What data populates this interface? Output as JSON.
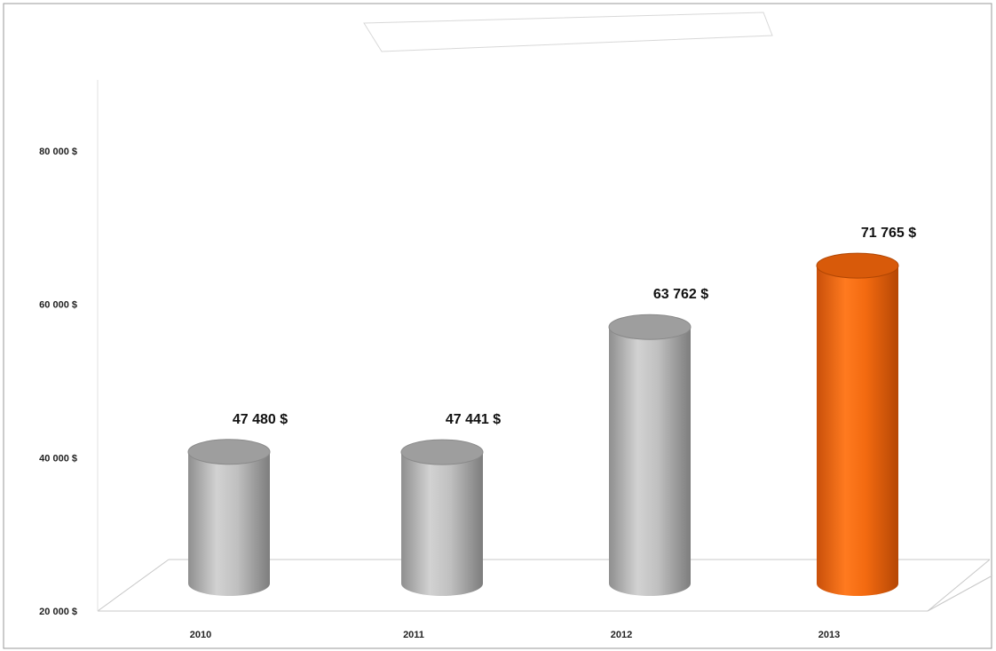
{
  "chart_data": {
    "type": "bar",
    "title": "",
    "xlabel": "",
    "ylabel": "",
    "categories": [
      "2010",
      "2011",
      "2012",
      "2013"
    ],
    "values": [
      47480,
      47441,
      63762,
      71765
    ],
    "data_labels": [
      "47 480 $",
      "47 441 $",
      "63 762 $",
      "71 765 $"
    ],
    "ylim": [
      20000,
      90000
    ],
    "yticks": [
      20000,
      40000,
      60000,
      80000
    ],
    "ytick_labels": [
      "20 000 $",
      "40 000 $",
      "60 000 $",
      "80 000 $"
    ],
    "grid": false,
    "legend": "none",
    "bar_shape": "cylinder",
    "colors": {
      "default_bar": "#b5b5b5",
      "highlight_bar": "#f26a10",
      "axis": "#c8c8c8",
      "frame": "#9a9a9a"
    },
    "highlight_index": 3
  }
}
